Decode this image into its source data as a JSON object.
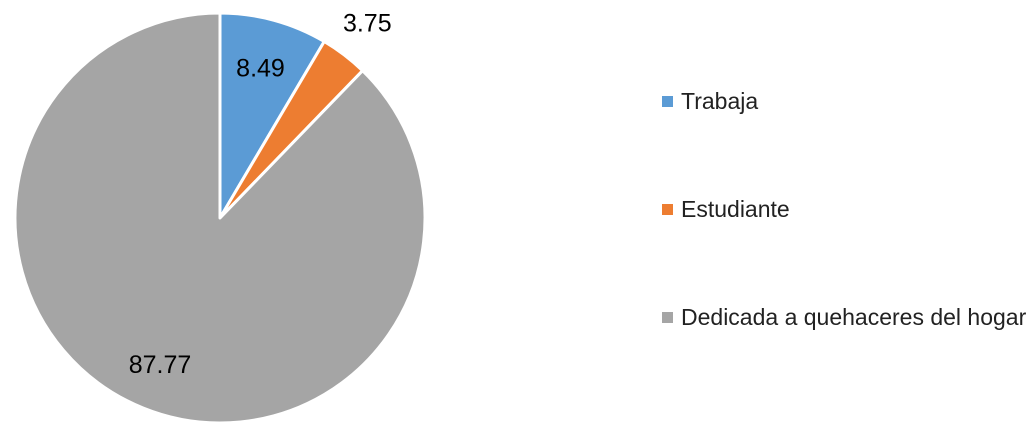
{
  "chart_data": {
    "type": "pie",
    "categories": [
      "Trabaja",
      "Estudiante",
      "Dedicada a quehaceres del hogar"
    ],
    "values": [
      8.49,
      3.75,
      87.77
    ],
    "colors": [
      "#5b9bd5",
      "#ed7d31",
      "#a5a5a5"
    ],
    "legend": "right"
  }
}
